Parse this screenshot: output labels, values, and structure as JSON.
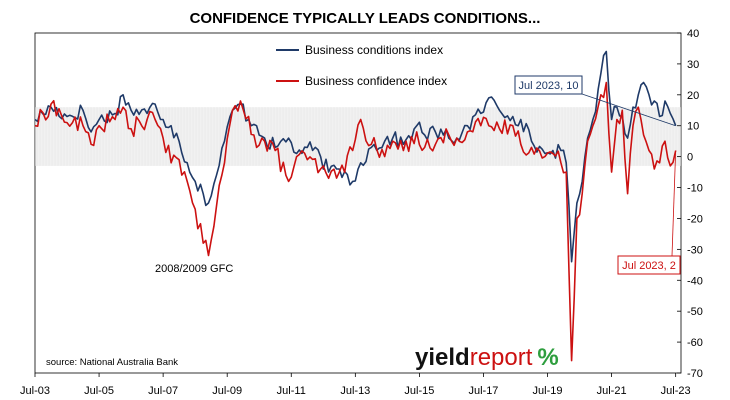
{
  "chart_data": {
    "type": "line",
    "title": "CONFIDENCE TYPICALLY LEADS CONDITIONS...",
    "xlabel": "",
    "ylabel": "",
    "x_tick_labels": [
      "Jul-03",
      "Jul-05",
      "Jul-07",
      "Jul-09",
      "Jul-11",
      "Jul-13",
      "Jul-15",
      "Jul-17",
      "Jul-19",
      "Jul-21",
      "Jul-23"
    ],
    "y_tick_labels": [
      "40",
      "30",
      "20",
      "10",
      "0",
      "-10",
      "-20",
      "-30",
      "-40",
      "-50",
      "-60",
      "-70"
    ],
    "ylim": [
      -70,
      40
    ],
    "xlim": [
      "2003-07",
      "2023-09"
    ],
    "grid": false,
    "legend_placement": "top-center",
    "series": [
      {
        "name": "Business conditions index",
        "color": "#1f3a68",
        "points": [
          [
            "2003-07",
            12
          ],
          [
            "2004-01",
            16
          ],
          [
            "2004-07",
            13
          ],
          [
            "2005-01",
            15
          ],
          [
            "2005-04",
            8
          ],
          [
            "2005-07",
            12
          ],
          [
            "2006-01",
            14
          ],
          [
            "2006-04",
            20
          ],
          [
            "2006-07",
            15
          ],
          [
            "2007-01",
            14
          ],
          [
            "2007-04",
            17
          ],
          [
            "2007-07",
            12
          ],
          [
            "2007-10",
            10
          ],
          [
            "2008-01",
            5
          ],
          [
            "2008-04",
            -2
          ],
          [
            "2008-07",
            -8
          ],
          [
            "2008-10",
            -12
          ],
          [
            "2008-12",
            -15
          ],
          [
            "2009-03",
            -6
          ],
          [
            "2009-06",
            5
          ],
          [
            "2009-09",
            15
          ],
          [
            "2009-12",
            17
          ],
          [
            "2010-03",
            12
          ],
          [
            "2010-06",
            10
          ],
          [
            "2010-09",
            6
          ],
          [
            "2011-01",
            3
          ],
          [
            "2011-06",
            6
          ],
          [
            "2011-09",
            1
          ],
          [
            "2012-01",
            3
          ],
          [
            "2012-06",
            0
          ],
          [
            "2012-09",
            -5
          ],
          [
            "2013-01",
            -4
          ],
          [
            "2013-06",
            -8
          ],
          [
            "2013-09",
            -2
          ],
          [
            "2014-01",
            3
          ],
          [
            "2014-06",
            5
          ],
          [
            "2014-09",
            6
          ],
          [
            "2015-01",
            4
          ],
          [
            "2015-06",
            10
          ],
          [
            "2015-09",
            7
          ],
          [
            "2016-01",
            8
          ],
          [
            "2016-06",
            6
          ],
          [
            "2016-09",
            6
          ],
          [
            "2017-01",
            10
          ],
          [
            "2017-06",
            14
          ],
          [
            "2017-09",
            19
          ],
          [
            "2018-01",
            15
          ],
          [
            "2018-06",
            13
          ],
          [
            "2018-09",
            12
          ],
          [
            "2019-01",
            5
          ],
          [
            "2019-06",
            1
          ],
          [
            "2019-09",
            2
          ],
          [
            "2019-12",
            2
          ],
          [
            "2020-02",
            -2
          ],
          [
            "2020-04",
            -34
          ],
          [
            "2020-06",
            -15
          ],
          [
            "2020-08",
            -8
          ],
          [
            "2020-10",
            6
          ],
          [
            "2020-12",
            12
          ],
          [
            "2021-03",
            27
          ],
          [
            "2021-05",
            34
          ],
          [
            "2021-07",
            12
          ],
          [
            "2021-09",
            16
          ],
          [
            "2021-11",
            13
          ],
          [
            "2022-01",
            6
          ],
          [
            "2022-03",
            16
          ],
          [
            "2022-05",
            20
          ],
          [
            "2022-07",
            24
          ],
          [
            "2022-09",
            20
          ],
          [
            "2022-11",
            18
          ],
          [
            "2023-01",
            13
          ],
          [
            "2023-03",
            18
          ],
          [
            "2023-05",
            14
          ],
          [
            "2023-07",
            10
          ]
        ]
      },
      {
        "name": "Business confidence index",
        "color": "#cc1111",
        "points": [
          [
            "2003-07",
            10
          ],
          [
            "2004-01",
            17
          ],
          [
            "2004-07",
            11
          ],
          [
            "2005-01",
            10
          ],
          [
            "2005-04",
            4
          ],
          [
            "2005-07",
            10
          ],
          [
            "2006-01",
            12
          ],
          [
            "2006-04",
            16
          ],
          [
            "2006-07",
            9
          ],
          [
            "2007-01",
            12
          ],
          [
            "2007-04",
            12
          ],
          [
            "2007-07",
            6
          ],
          [
            "2007-10",
            -2
          ],
          [
            "2008-01",
            -1
          ],
          [
            "2008-04",
            -8
          ],
          [
            "2008-07",
            -17
          ],
          [
            "2008-10",
            -28
          ],
          [
            "2008-12",
            -32
          ],
          [
            "2009-03",
            -16
          ],
          [
            "2009-06",
            -2
          ],
          [
            "2009-09",
            15
          ],
          [
            "2009-12",
            18
          ],
          [
            "2010-03",
            13
          ],
          [
            "2010-06",
            3
          ],
          [
            "2010-09",
            5
          ],
          [
            "2011-01",
            2
          ],
          [
            "2011-06",
            -8
          ],
          [
            "2011-09",
            0
          ],
          [
            "2012-01",
            -1
          ],
          [
            "2012-06",
            -4
          ],
          [
            "2012-09",
            -7
          ],
          [
            "2013-01",
            -5
          ],
          [
            "2013-06",
            2
          ],
          [
            "2013-09",
            12
          ],
          [
            "2014-01",
            4
          ],
          [
            "2014-06",
            0
          ],
          [
            "2014-09",
            5
          ],
          [
            "2015-01",
            2
          ],
          [
            "2015-06",
            8
          ],
          [
            "2015-09",
            3
          ],
          [
            "2016-01",
            4
          ],
          [
            "2016-06",
            7
          ],
          [
            "2016-09",
            6
          ],
          [
            "2017-01",
            8
          ],
          [
            "2017-06",
            10
          ],
          [
            "2017-09",
            10
          ],
          [
            "2018-01",
            9
          ],
          [
            "2018-06",
            10
          ],
          [
            "2018-09",
            4
          ],
          [
            "2019-01",
            3
          ],
          [
            "2019-06",
            0
          ],
          [
            "2019-09",
            1
          ],
          [
            "2019-12",
            -2
          ],
          [
            "2020-02",
            -5
          ],
          [
            "2020-04",
            -66
          ],
          [
            "2020-06",
            -20
          ],
          [
            "2020-08",
            -12
          ],
          [
            "2020-10",
            5
          ],
          [
            "2020-12",
            10
          ],
          [
            "2021-03",
            20
          ],
          [
            "2021-05",
            24
          ],
          [
            "2021-07",
            -5
          ],
          [
            "2021-09",
            12
          ],
          [
            "2021-11",
            15
          ],
          [
            "2022-01",
            -12
          ],
          [
            "2022-03",
            10
          ],
          [
            "2022-05",
            16
          ],
          [
            "2022-07",
            7
          ],
          [
            "2022-09",
            2
          ],
          [
            "2022-11",
            -4
          ],
          [
            "2023-01",
            -2
          ],
          [
            "2023-03",
            5
          ],
          [
            "2023-05",
            -3
          ],
          [
            "2023-07",
            2
          ]
        ]
      }
    ],
    "annotations": [
      {
        "text": "2008/2009 GFC"
      },
      {
        "text": "Jul 2023, 10"
      },
      {
        "text": "Jul 2023, 2"
      }
    ],
    "source": "source: National Australia Bank",
    "brand": {
      "yield": "yield",
      "report": "report",
      "symbol": "%"
    },
    "colors": {
      "conditions": "#1f3a68",
      "confidence": "#cc1111",
      "band": "#d8d8d8",
      "frame": "#000000",
      "brand_yield": "#111111",
      "brand_report": "#cc1111",
      "brand_pct_green": "#2e9e3e"
    }
  }
}
